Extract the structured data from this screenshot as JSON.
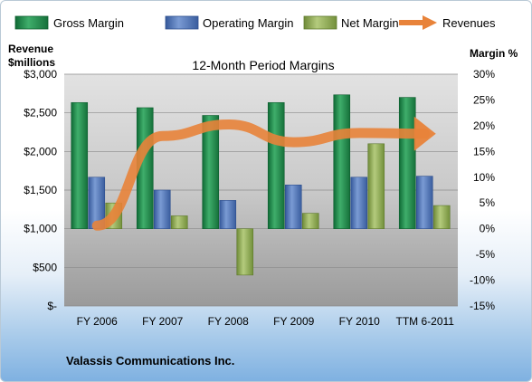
{
  "chart_data": {
    "type": "bar",
    "title": "12-Month Period Margins",
    "company": "Valassis Communications Inc.",
    "left_axis": {
      "label_line1": "Revenue",
      "label_line2": "$millions",
      "ylim": [
        0,
        3000
      ],
      "ticks": [
        0,
        500,
        1000,
        1500,
        2000,
        2500,
        3000
      ],
      "tick_labels": [
        "$-",
        "$500",
        "$1,000",
        "$1,500",
        "$2,000",
        "$2,500",
        "$3,000"
      ]
    },
    "right_axis": {
      "label": "Margin %",
      "ylim": [
        -15,
        30
      ],
      "ticks": [
        -15,
        -10,
        -5,
        0,
        5,
        10,
        15,
        20,
        25,
        30
      ],
      "tick_labels": [
        "-15%",
        "-10%",
        "-5%",
        "0%",
        "5%",
        "10%",
        "15%",
        "20%",
        "25%",
        "30%"
      ]
    },
    "categories": [
      "FY 2006",
      "FY 2007",
      "FY 2008",
      "FY 2009",
      "FY 2010",
      "TTM 6-2011"
    ],
    "series": [
      {
        "name": "Gross Margin",
        "axis": "right",
        "color": "#1f8a4c",
        "values": [
          24.5,
          23.5,
          22.0,
          24.5,
          26.0,
          25.5
        ]
      },
      {
        "name": "Operating Margin",
        "axis": "right",
        "color": "#4a6fb0",
        "values": [
          10.0,
          7.5,
          5.5,
          8.5,
          10.0,
          10.2
        ]
      },
      {
        "name": "Net Margin",
        "axis": "right",
        "color": "#8fac52",
        "values": [
          5.0,
          2.5,
          -9.0,
          3.0,
          16.5,
          4.5
        ]
      },
      {
        "name": "Revenues",
        "axis": "left",
        "color": "#e8833a",
        "values": [
          1040,
          2200,
          2350,
          2120,
          2240,
          2230
        ]
      }
    ],
    "legend_position": "top"
  }
}
